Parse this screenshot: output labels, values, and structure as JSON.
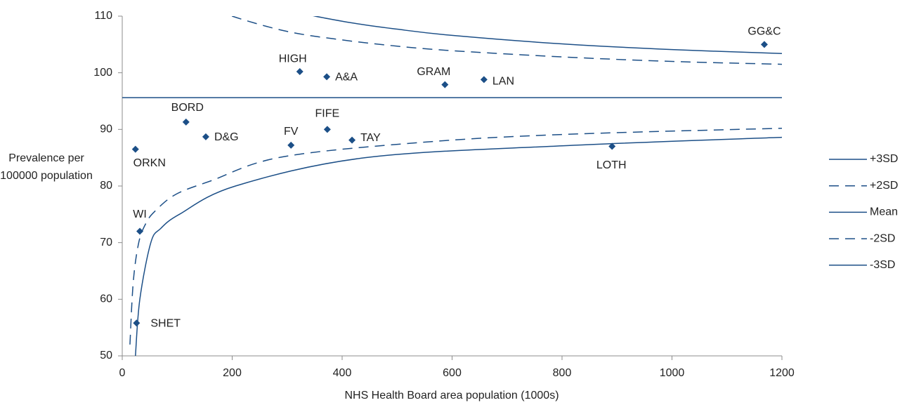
{
  "chart_data": {
    "type": "scatter",
    "xlabel": "NHS Health Board area population  (1000s)",
    "ylabel": "Prevalence per 100000 population",
    "xlim": [
      0,
      1200
    ],
    "ylim": [
      50,
      110
    ],
    "xticks": [
      0,
      200,
      400,
      600,
      800,
      1000,
      1200
    ],
    "yticks": [
      50,
      60,
      70,
      80,
      90,
      100,
      110
    ],
    "series": [
      {
        "type": "scatter",
        "color": "#1c4f87",
        "labels": [
          "GG&C",
          "HIGH",
          "A&A",
          "GRAM",
          "LAN",
          "BORD",
          "D&G",
          "FV",
          "FIFE",
          "TAY",
          "ORKN",
          "LOTH",
          "WI",
          "SHET"
        ],
        "x": [
          1168,
          323,
          372,
          587,
          658,
          116,
          152,
          307,
          373,
          418,
          24,
          891,
          32,
          26
        ],
        "values": [
          105.0,
          100.2,
          99.3,
          97.9,
          98.8,
          91.3,
          88.7,
          87.2,
          90.0,
          88.1,
          86.5,
          87.0,
          72.0,
          55.8
        ]
      },
      {
        "type": "line",
        "name": "+3SD",
        "color": "#1c4f87",
        "dashed": false,
        "x": [
          200,
          300,
          400,
          500,
          600,
          800,
          1000,
          1200
        ],
        "values": [
          114.7,
          111.2,
          109.1,
          107.7,
          106.6,
          105.1,
          104.1,
          103.4
        ]
      },
      {
        "type": "line",
        "name": "+2SD",
        "color": "#1c4f87",
        "dashed": true,
        "x": [
          100,
          150,
          200,
          300,
          400,
          500,
          600,
          800,
          1000,
          1200
        ],
        "values": [
          115.9,
          112.2,
          110.0,
          107.3,
          105.8,
          104.7,
          103.9,
          102.8,
          102.0,
          101.5
        ]
      },
      {
        "type": "line",
        "name": "Mean",
        "color": "#1c4f87",
        "dashed": false,
        "x": [
          0,
          1200
        ],
        "values": [
          95.6,
          95.6
        ]
      },
      {
        "type": "line",
        "name": "-2SD",
        "color": "#1c4f87",
        "dashed": true,
        "x": [
          14,
          20,
          30,
          43,
          59,
          97,
          161,
          289,
          544,
          800,
          1200
        ],
        "values": [
          52,
          63,
          70,
          73.4,
          75.5,
          78.5,
          80.9,
          85.1,
          87.7,
          89.1,
          90.2
        ]
      },
      {
        "type": "line",
        "name": "-3SD",
        "color": "#1c4f87",
        "dashed": false,
        "x": [
          24,
          32,
          52,
          70,
          104,
          206,
          442,
          800,
          1200
        ],
        "values": [
          50,
          60,
          70,
          72.5,
          75,
          80,
          85,
          87.1,
          88.6
        ]
      }
    ]
  }
}
